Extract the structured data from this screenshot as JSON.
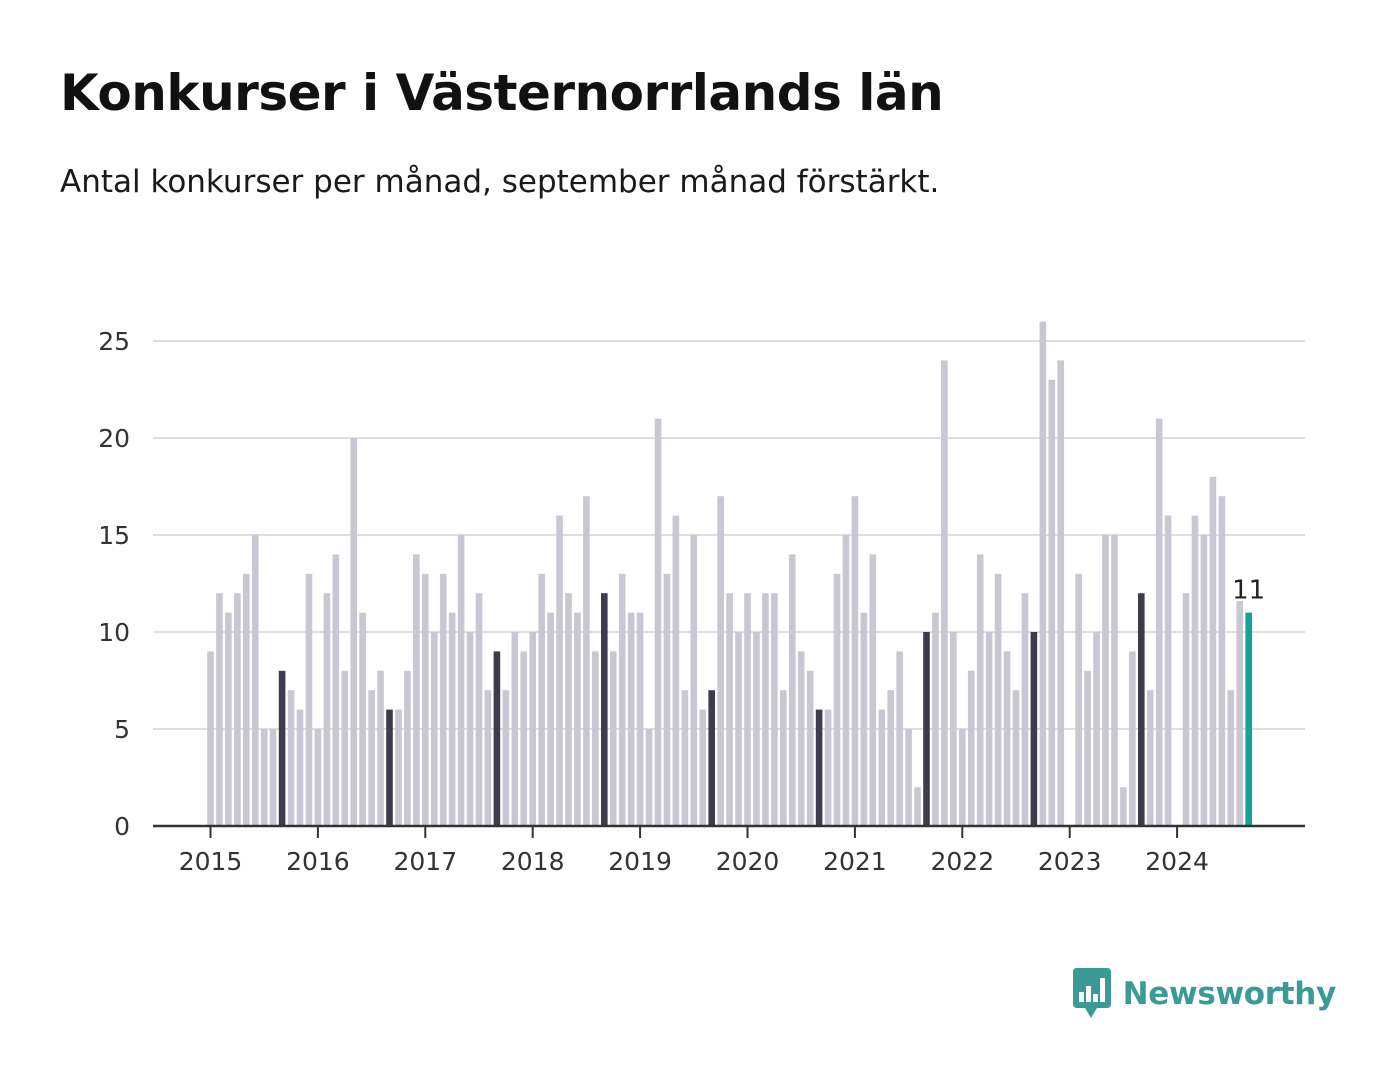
{
  "title": "Konkurser i Västernorrlands län",
  "subtitle": "Antal konkurser per månad, september månad förstärkt.",
  "brand": {
    "name": "Newsworthy",
    "icon": "bar-chart-speech-bubble-icon"
  },
  "colors": {
    "base": "#c8c7d3",
    "highlight": "#3d3c4d",
    "latest": "#13a39b",
    "grid": "#dddde3",
    "axis": "#333333"
  },
  "chart_data": {
    "type": "bar",
    "title": "Konkurser i Västernorrlands län",
    "subtitle": "Antal konkurser per månad, september månad förstärkt.",
    "xlabel": "",
    "ylabel": "",
    "ylim": [
      0,
      27
    ],
    "yticks": [
      0,
      5,
      10,
      15,
      20,
      25
    ],
    "year_labels": [
      "2015",
      "2016",
      "2017",
      "2018",
      "2019",
      "2020",
      "2021",
      "2022",
      "2023",
      "2024"
    ],
    "start": "2015-01",
    "highlight_month": "september",
    "grid": true,
    "legend": "none",
    "latest_label": "11",
    "values": [
      9,
      12,
      11,
      12,
      13,
      15,
      5,
      5,
      8,
      7,
      6,
      13,
      5,
      12,
      14,
      8,
      20,
      11,
      7,
      8,
      6,
      6,
      8,
      14,
      13,
      10,
      13,
      11,
      15,
      10,
      12,
      7,
      9,
      7,
      10,
      9,
      10,
      13,
      11,
      16,
      12,
      11,
      17,
      9,
      12,
      9,
      13,
      11,
      11,
      5,
      21,
      13,
      16,
      7,
      15,
      6,
      7,
      17,
      12,
      10,
      12,
      10,
      12,
      12,
      7,
      14,
      9,
      8,
      6,
      6,
      13,
      15,
      17,
      11,
      14,
      6,
      7,
      9,
      5,
      2,
      10,
      11,
      24,
      10,
      5,
      8,
      14,
      10,
      13,
      9,
      7,
      12,
      10,
      26,
      23,
      24,
      0,
      13,
      8,
      10,
      15,
      15,
      2,
      9,
      12,
      7,
      21,
      16,
      0,
      12,
      16,
      15,
      18,
      17,
      7,
      11.6,
      11
    ]
  }
}
